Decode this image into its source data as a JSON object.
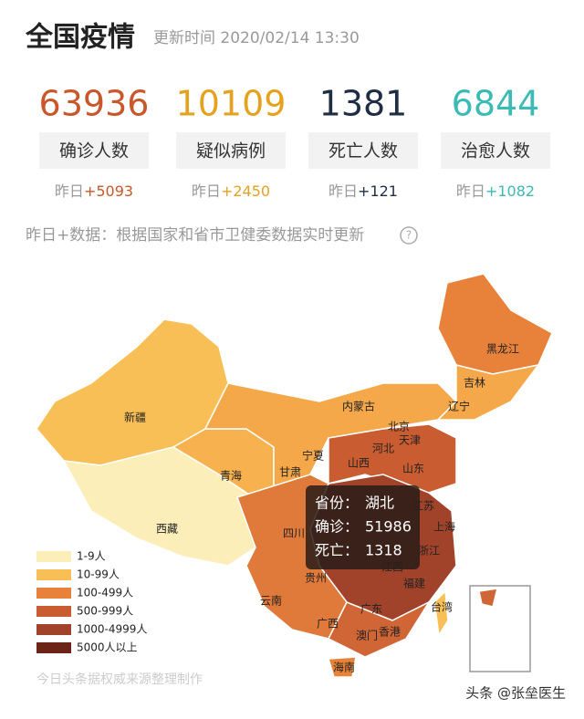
{
  "header": {
    "title": "全国疫情",
    "update": "更新时间 2020/02/14 13:30"
  },
  "stats": [
    {
      "value": 63936,
      "label": "确诊人数",
      "yesterday": "昨日",
      "delta": "+5093",
      "color": "#c8572b"
    },
    {
      "value": 10109,
      "label": "疑似病例",
      "yesterday": "昨日",
      "delta": "+2450",
      "color": "#e4a21f"
    },
    {
      "value": 1381,
      "label": "死亡人数",
      "yesterday": "昨日",
      "delta": "+121",
      "color": "#1f2d44"
    },
    {
      "value": 6844,
      "label": "治愈人数",
      "yesterday": "昨日",
      "delta": "+1082",
      "color": "#3cbab5"
    }
  ],
  "note": "昨日+数据：根据国家和省市卫健委数据实时更新",
  "map": {
    "provinces": [
      "新疆",
      "西藏",
      "青海",
      "甘肃",
      "宁夏",
      "内蒙古",
      "黑龙江",
      "吉林",
      "辽宁",
      "北京",
      "天津",
      "河北",
      "山西",
      "山东",
      "四川",
      "贵州",
      "云南",
      "广西",
      "广东",
      "海南",
      "福建",
      "浙江",
      "上海",
      "江苏",
      "江西",
      "澳门",
      "香港",
      "台湾"
    ],
    "tooltip": [
      {
        "label": "省份：",
        "value": "湖北"
      },
      {
        "label": "确诊：",
        "value": 51986
      },
      {
        "label": "死亡：",
        "value": 1318
      }
    ],
    "legend": [
      {
        "label": "1-9人",
        "color": "#fbeeb8"
      },
      {
        "label": "10-99人",
        "color": "#f7bf55"
      },
      {
        "label": "100-499人",
        "color": "#e8823a"
      },
      {
        "label": "500-999人",
        "color": "#c95c30"
      },
      {
        "label": "1000-4999人",
        "color": "#a0432a"
      },
      {
        "label": "5000人以上",
        "color": "#6b2416"
      }
    ]
  },
  "footer": {
    "source": "今日头条据权威来源整理制作",
    "watermark": "头条 @张垒医生"
  }
}
